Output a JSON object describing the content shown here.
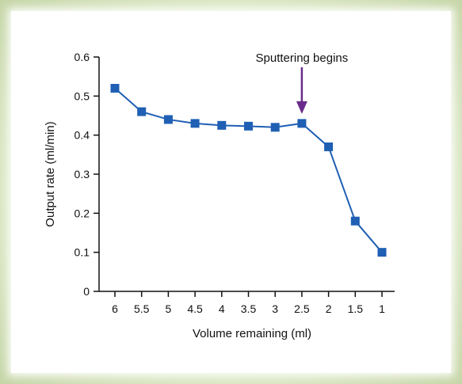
{
  "chart_data": {
    "type": "line",
    "x": [
      6,
      5.5,
      5,
      4.5,
      4,
      3.5,
      3,
      2.5,
      2,
      1.5,
      1
    ],
    "series": [
      {
        "values": [
          0.52,
          0.46,
          0.44,
          0.43,
          0.425,
          0.423,
          0.42,
          0.43,
          0.37,
          0.18,
          0.1
        ]
      }
    ],
    "x_tick_labels": [
      "6",
      "5.5",
      "5",
      "4.5",
      "4",
      "3.5",
      "3",
      "2.5",
      "2",
      "1.5",
      "1"
    ],
    "y_ticks": [
      0,
      0.1,
      0.2,
      0.3,
      0.4,
      0.5,
      0.6
    ],
    "y_tick_labels": [
      "0",
      "0.1",
      "0.2",
      "0.3",
      "0.4",
      "0.5",
      "0.6"
    ],
    "xlabel": "Volume remaining (ml)",
    "ylabel": "Output rate (ml/min)",
    "ylim": [
      0,
      0.6
    ],
    "x_reversed": true,
    "grid": false,
    "annotation": {
      "text": "Sputtering begins",
      "x": 2.5
    },
    "colors": {
      "series": "#1f5fb4",
      "arrow": "#6a2c8c",
      "axis": "#111111"
    }
  }
}
